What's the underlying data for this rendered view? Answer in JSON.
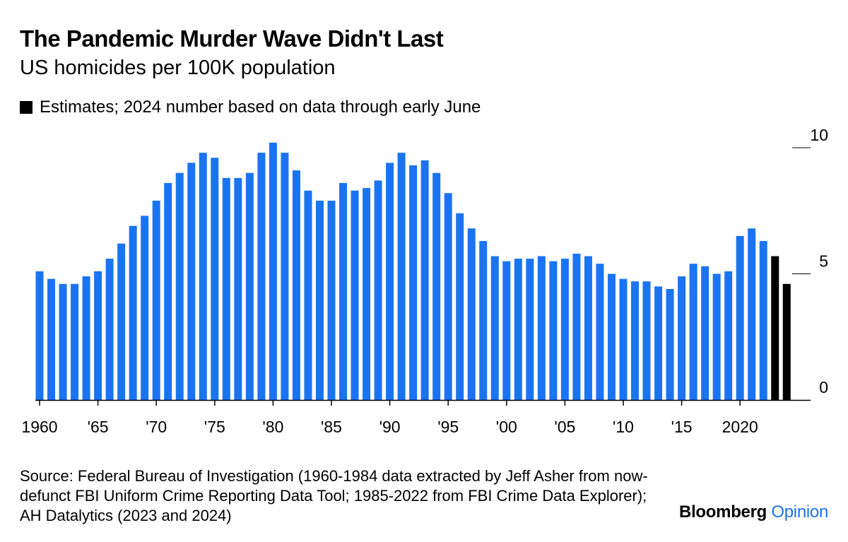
{
  "title": "The Pandemic Murder Wave Didn't Last",
  "subtitle": "US homicides per 100K population",
  "legend": {
    "label": "Estimates; 2024 number based on data through early June",
    "color": "#000000"
  },
  "source": "Source: Federal Bureau of Investigation (1960-1984 data extracted by Jeff Asher from now-defunct FBI Uniform Crime Reporting Data Tool; 1985-2022 from FBI Crime Data Explorer); AH Datalytics (2023 and 2024)",
  "brand": {
    "name": "Bloomberg",
    "section": "Opinion"
  },
  "colors": {
    "actual": "#1a74f2",
    "estimate": "#000000",
    "axis": "#000000"
  },
  "chart_data": {
    "type": "bar",
    "title": "The Pandemic Murder Wave Didn't Last",
    "subtitle": "US homicides per 100K population",
    "xlabel": "",
    "ylabel": "",
    "ylim": [
      0,
      10
    ],
    "y_ticks": [
      0,
      5,
      10
    ],
    "x_tick_labels": [
      {
        "year": 1960,
        "label": "1960"
      },
      {
        "year": 1965,
        "label": "'65"
      },
      {
        "year": 1970,
        "label": "'70"
      },
      {
        "year": 1975,
        "label": "'75"
      },
      {
        "year": 1980,
        "label": "'80"
      },
      {
        "year": 1985,
        "label": "'85"
      },
      {
        "year": 1990,
        "label": "'90"
      },
      {
        "year": 1995,
        "label": "'95"
      },
      {
        "year": 2000,
        "label": "'00"
      },
      {
        "year": 2005,
        "label": "'05"
      },
      {
        "year": 2010,
        "label": "'10"
      },
      {
        "year": 2015,
        "label": "'15"
      },
      {
        "year": 2020,
        "label": "2020"
      }
    ],
    "categories": [
      1960,
      1961,
      1962,
      1963,
      1964,
      1965,
      1966,
      1967,
      1968,
      1969,
      1970,
      1971,
      1972,
      1973,
      1974,
      1975,
      1976,
      1977,
      1978,
      1979,
      1980,
      1981,
      1982,
      1983,
      1984,
      1985,
      1986,
      1987,
      1988,
      1989,
      1990,
      1991,
      1992,
      1993,
      1994,
      1995,
      1996,
      1997,
      1998,
      1999,
      2000,
      2001,
      2002,
      2003,
      2004,
      2005,
      2006,
      2007,
      2008,
      2009,
      2010,
      2011,
      2012,
      2013,
      2014,
      2015,
      2016,
      2017,
      2018,
      2019,
      2020,
      2021,
      2022,
      2023,
      2024
    ],
    "values": [
      5.1,
      4.8,
      4.6,
      4.6,
      4.9,
      5.1,
      5.6,
      6.2,
      6.9,
      7.3,
      7.9,
      8.6,
      9.0,
      9.4,
      9.8,
      9.6,
      8.8,
      8.8,
      9.0,
      9.8,
      10.2,
      9.8,
      9.1,
      8.3,
      7.9,
      7.9,
      8.6,
      8.3,
      8.4,
      8.7,
      9.4,
      9.8,
      9.3,
      9.5,
      9.0,
      8.2,
      7.4,
      6.8,
      6.3,
      5.7,
      5.5,
      5.6,
      5.6,
      5.7,
      5.5,
      5.6,
      5.8,
      5.7,
      5.4,
      5.0,
      4.8,
      4.7,
      4.7,
      4.5,
      4.4,
      4.9,
      5.4,
      5.3,
      5.0,
      5.1,
      6.5,
      6.8,
      6.3,
      5.7,
      4.6
    ],
    "estimate_years": [
      2023,
      2024
    ],
    "legend": "Estimates; 2024 number based on data through early June",
    "legend_position": "top-left",
    "grid": false
  }
}
